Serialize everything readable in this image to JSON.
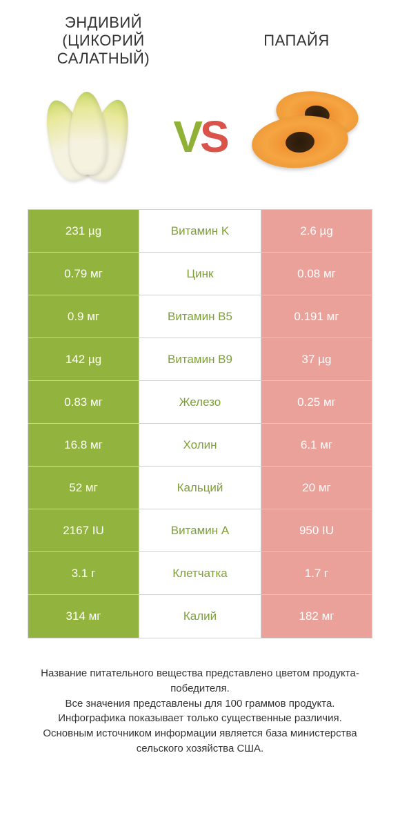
{
  "colors": {
    "left_win": "#92b43e",
    "right_win": "#d9534a",
    "left_lose": "#b9cd7f",
    "right_lose": "#e9a19a",
    "mid_text_left": "#7da034",
    "mid_text_right": "#c9453c"
  },
  "header": {
    "left_title": "ЭНДИВИЙ (ЦИКОРИЙ САЛАТНЫЙ)",
    "right_title": "ПАПАЙЯ",
    "vs_v": "V",
    "vs_s": "S"
  },
  "rows": [
    {
      "left": "231 µg",
      "mid": "Витамин K",
      "right": "2.6 µg",
      "winner": "left"
    },
    {
      "left": "0.79 мг",
      "mid": "Цинк",
      "right": "0.08 мг",
      "winner": "left"
    },
    {
      "left": "0.9 мг",
      "mid": "Витамин B5",
      "right": "0.191 мг",
      "winner": "left"
    },
    {
      "left": "142 µg",
      "mid": "Витамин B9",
      "right": "37 µg",
      "winner": "left"
    },
    {
      "left": "0.83 мг",
      "mid": "Железо",
      "right": "0.25 мг",
      "winner": "left"
    },
    {
      "left": "16.8 мг",
      "mid": "Холин",
      "right": "6.1 мг",
      "winner": "left"
    },
    {
      "left": "52 мг",
      "mid": "Кальций",
      "right": "20 мг",
      "winner": "left"
    },
    {
      "left": "2167 IU",
      "mid": "Витамин A",
      "right": "950 IU",
      "winner": "left"
    },
    {
      "left": "3.1 г",
      "mid": "Клетчатка",
      "right": "1.7 г",
      "winner": "left"
    },
    {
      "left": "314 мг",
      "mid": "Калий",
      "right": "182 мг",
      "winner": "left"
    }
  ],
  "footer": {
    "line1": "Название питательного вещества представлено цветом продукта-победителя.",
    "line2": "Все значения представлены для 100 граммов продукта.",
    "line3": "Инфографика показывает только существенные различия.",
    "line4": "Основным источником информации является база министерства сельского хозяйства США."
  }
}
